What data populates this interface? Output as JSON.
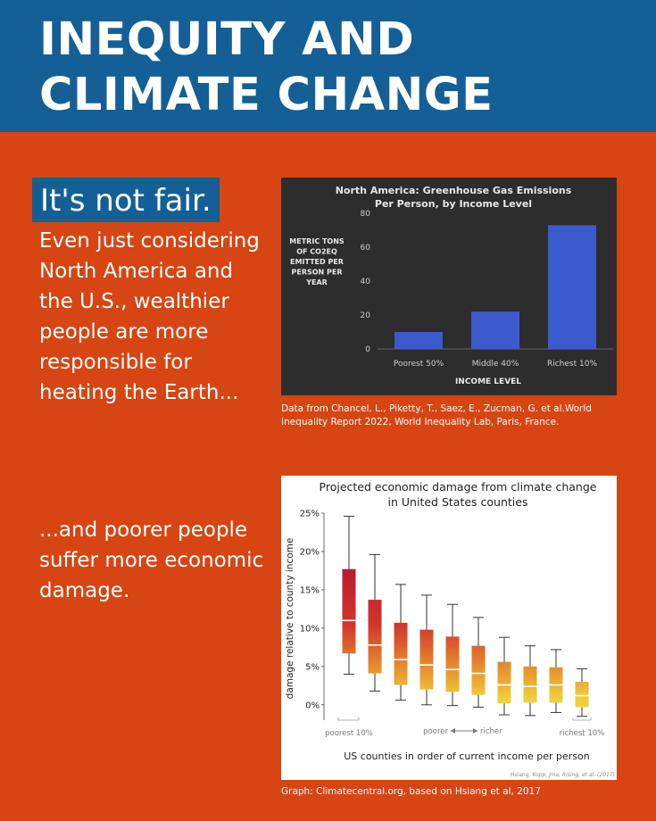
{
  "header": {
    "title_line1": "INEQUITY AND",
    "title_line2": "CLIMATE CHANGE"
  },
  "tagline": "It's not fair.",
  "paragraph1": "Even just considering North America and the U.S., wealthier people are more responsible for heating the Earth...",
  "paragraph2": "...and poorer people suffer more economic damage.",
  "caption1": "Data from Chancel, L., Piketty, T., Saez, E., Zucman, G. et al.World Inequality Report 2022, World Inequality Lab, Paris, France.",
  "caption2": "Graph: Climatecentral.org, based on Hsiang et al, 2017",
  "colors": {
    "header": "#145f96",
    "background": "#d64512",
    "bar": "#3b5bcc",
    "box_top": "#b8192f",
    "box_bottom": "#f0cf3a"
  },
  "chart_data": [
    {
      "type": "bar",
      "title_line1": "North America: Greenhouse Gas Emissions",
      "title_line2": "Per Person, by Income Level",
      "ylabel_lines": [
        "METRIC TONS",
        "OF CO2EQ",
        "EMITTED PER",
        "PERSON PER",
        "YEAR"
      ],
      "xlabel": "INCOME LEVEL",
      "categories": [
        "Poorest 50%",
        "Middle 40%",
        "Richest 10%"
      ],
      "values": [
        10,
        22,
        73
      ],
      "ylim": [
        0,
        80
      ],
      "yticks": [
        0,
        20,
        40,
        60,
        80
      ]
    },
    {
      "type": "box",
      "title_line1": "Projected economic damage from climate change",
      "title_line2": "in United States counties",
      "ylabel": "damage relative to county income",
      "xlabel": "US counties in order of current income per person",
      "ylim": [
        -2,
        25
      ],
      "yticks": [
        "0%",
        "5%",
        "10%",
        "15%",
        "20%",
        "25%"
      ],
      "ytick_values": [
        0,
        5,
        10,
        15,
        20,
        25
      ],
      "boxes": [
        {
          "whisker_low": 4,
          "q1": 6.7,
          "median": 11,
          "q3": 17.7,
          "whisker_high": 24.6
        },
        {
          "whisker_low": 1.8,
          "q1": 4.1,
          "median": 7.8,
          "q3": 13.7,
          "whisker_high": 19.6
        },
        {
          "whisker_low": 0.6,
          "q1": 2.6,
          "median": 5.9,
          "q3": 10.7,
          "whisker_high": 15.7
        },
        {
          "whisker_low": 0,
          "q1": 2,
          "median": 5.2,
          "q3": 9.8,
          "whisker_high": 14.3
        },
        {
          "whisker_low": -0.1,
          "q1": 1.7,
          "median": 4.6,
          "q3": 8.9,
          "whisker_high": 13.1
        },
        {
          "whisker_low": -0.3,
          "q1": 1.3,
          "median": 4.1,
          "q3": 7.7,
          "whisker_high": 11.4
        },
        {
          "whisker_low": -1.3,
          "q1": 0.2,
          "median": 2.6,
          "q3": 5.6,
          "whisker_high": 8.8
        },
        {
          "whisker_low": -1.4,
          "q1": 0.3,
          "median": 2.4,
          "q3": 5.0,
          "whisker_high": 7.7
        },
        {
          "whisker_low": -1,
          "q1": 0.3,
          "median": 2.6,
          "q3": 4.9,
          "whisker_high": 7.2
        },
        {
          "whisker_low": -1.5,
          "q1": -0.3,
          "median": 1.2,
          "q3": 3.0,
          "whisker_high": 4.7
        }
      ],
      "annotations": {
        "left": "poorest 10%",
        "middle_left": "poorer",
        "middle_right": "richer",
        "right": "richest 10%",
        "credit": "Hsiang, Kopp, Jina, Rising, et al. (2017)"
      }
    }
  ]
}
